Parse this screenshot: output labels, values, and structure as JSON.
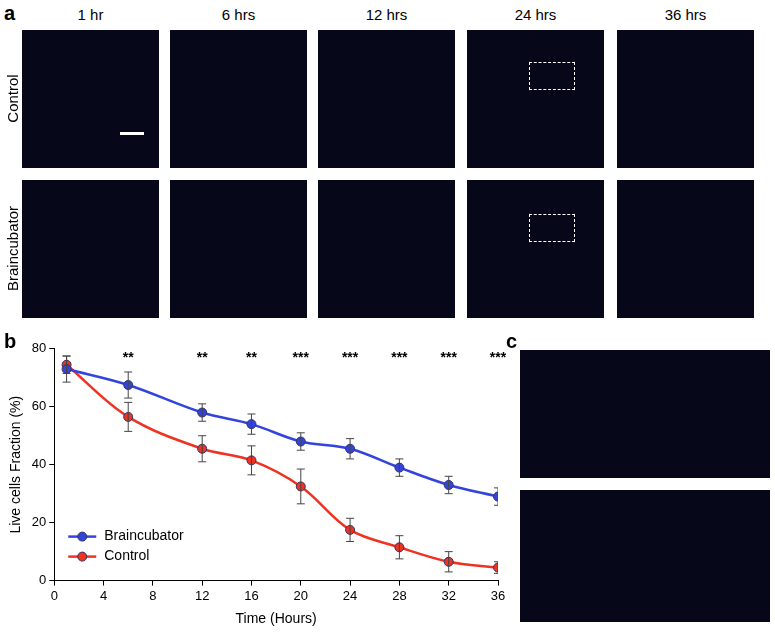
{
  "figure": {
    "panel_labels": [
      "a",
      "b",
      "c"
    ],
    "panel_a": {
      "columns": [
        "1 hr",
        "6 hrs",
        "12 hrs",
        "24 hrs",
        "36 hrs"
      ],
      "rows": [
        "Control",
        "Braincubator"
      ]
    }
  },
  "chart_data": {
    "type": "line",
    "x_label": "Time (Hours)",
    "y_label": "Live cells Fraction (%)",
    "x": [
      1,
      6,
      12,
      16,
      20,
      24,
      28,
      32,
      36
    ],
    "series": [
      {
        "name": "Braincubator",
        "color": "#3344dd",
        "marker": "circle",
        "line_style": "solid",
        "values": [
          73,
          67.5,
          58,
          54,
          48,
          45.5,
          39,
          33,
          29
        ],
        "errors": [
          4.5,
          4.5,
          3,
          3.5,
          3,
          3.5,
          3,
          3,
          3
        ]
      },
      {
        "name": "Control",
        "color": "#ee3322",
        "marker": "circle",
        "line_style": "solid",
        "values": [
          74.5,
          56.5,
          45.5,
          41.5,
          32.5,
          17.5,
          11.5,
          6.5,
          4.5
        ],
        "errors": [
          3,
          5,
          4.5,
          5,
          6,
          4,
          4,
          3.5,
          2
        ]
      }
    ],
    "xlim": [
      0,
      36
    ],
    "xticks": [
      0,
      4,
      8,
      12,
      16,
      20,
      24,
      28,
      32,
      36
    ],
    "ylim": [
      0,
      80
    ],
    "yticks": [
      0,
      20,
      40,
      60,
      80
    ],
    "grid": false,
    "legend": "lower left",
    "annotations": [
      {
        "x": 6,
        "text": "**"
      },
      {
        "x": 12,
        "text": "**"
      },
      {
        "x": 16,
        "text": "**"
      },
      {
        "x": 20,
        "text": "***"
      },
      {
        "x": 24,
        "text": "***"
      },
      {
        "x": 28,
        "text": "***"
      },
      {
        "x": 32,
        "text": "***"
      },
      {
        "x": 36,
        "text": "***"
      }
    ]
  }
}
